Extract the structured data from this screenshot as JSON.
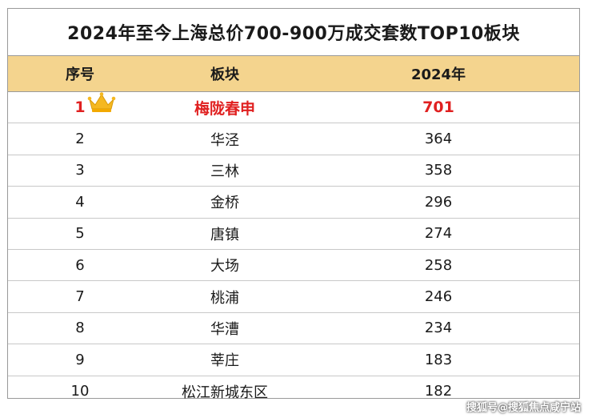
{
  "title": "2024年至今上海总价700-900万成交套数TOP10板块",
  "columns": [
    "序号",
    "板块",
    "2024年"
  ],
  "rows": [
    {
      "rank": "1",
      "area": "梅陇春申",
      "count": "701"
    },
    {
      "rank": "2",
      "area": "华泾",
      "count": "364"
    },
    {
      "rank": "3",
      "area": "三林",
      "count": "358"
    },
    {
      "rank": "4",
      "area": "金桥",
      "count": "296"
    },
    {
      "rank": "5",
      "area": "唐镇",
      "count": "274"
    },
    {
      "rank": "6",
      "area": "大场",
      "count": "258"
    },
    {
      "rank": "7",
      "area": "桃浦",
      "count": "246"
    },
    {
      "rank": "8",
      "area": "华漕",
      "count": "234"
    },
    {
      "rank": "9",
      "area": "莘庄",
      "count": "183"
    },
    {
      "rank": "10",
      "area": "松江新城东区",
      "count": "182"
    }
  ],
  "watermark": "搜狐号@搜狐焦点咸宁站",
  "colors": {
    "header_bg": "#f4d48e",
    "highlight": "#e02020",
    "crown": "#f5b820"
  },
  "icons": {
    "top_rank": "crown-icon"
  }
}
